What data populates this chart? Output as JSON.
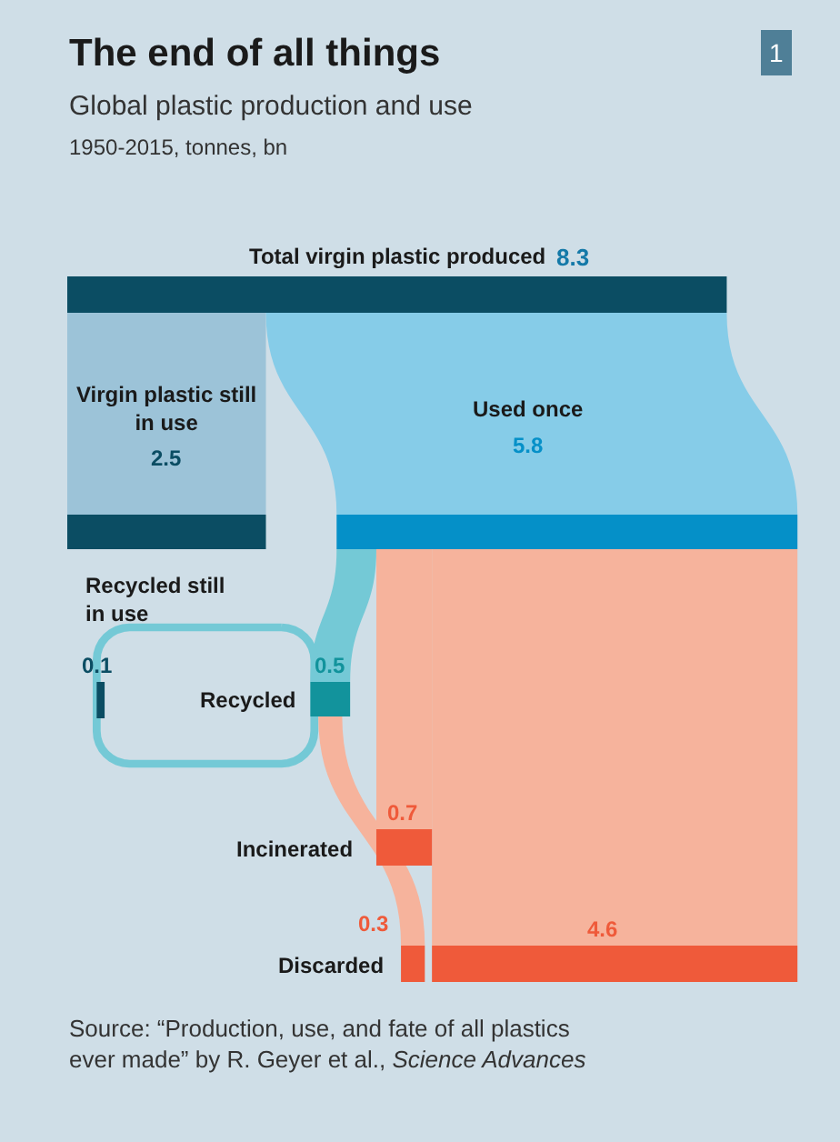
{
  "chart_data": {
    "type": "other",
    "title": "The end of all things",
    "subtitle": "Global plastic production and use",
    "annotations": [
      "1950-2015, tonnes, bn",
      "Source: “Production, use, and fate of all plastics ever made” by R. Geyer et al., $^{}$Science Advances",
      "1"
    ],
    "categories": [
      "Total virgin plastic produced",
      "Virgin plastic still in use",
      "Used once",
      "Recycled",
      "Recycled still in use",
      "Incinerated",
      "Discarded"
    ],
    "values": [
      8.3,
      null,
      null,
      null,
      null,
      null,
      null
    ],
    "value_labels": [
      "8.3",
      null,
      null,
      null,
      null,
      null,
      null
    ],
    "colors": [
      "#0b4d63",
      "#0b4d63",
      "#0590c8",
      "#12939c",
      "#0b4d63",
      "#ef5a3a",
      "#ef5a3a"
    ],
    "series": [
      {
        "values": [
          null,
          2.5,
          5.8,
          null,
          null,
          null,
          null
        ],
        "value_labels": [
          null,
          "2.5",
          "5.8",
          null,
          null,
          null,
          null
        ],
        "colors": [
          null,
          "#9cc3d8",
          "#86cce8",
          null,
          null,
          null,
          null
        ]
      },
      {
        "values": [
          null,
          null,
          null,
          0.5,
          null,
          0.7,
          4.6
        ],
        "value_labels": [
          null,
          null,
          null,
          "0.5",
          null,
          "0.7",
          "4.6"
        ],
        "colors": [
          null,
          null,
          null,
          "#74c9d6",
          null,
          "#f6b39c",
          "#f6b39c"
        ]
      },
      {
        "values": [
          null,
          null,
          null,
          null,
          0.1,
          null,
          0.3
        ],
        "value_labels": [
          null,
          null,
          null,
          null,
          "0.1",
          null,
          "0.3"
        ],
        "colors": [
          null,
          null,
          null,
          null,
          "#74c9d6",
          "#f6b39c",
          "#f6b39c"
        ]
      }
    ]
  }
}
